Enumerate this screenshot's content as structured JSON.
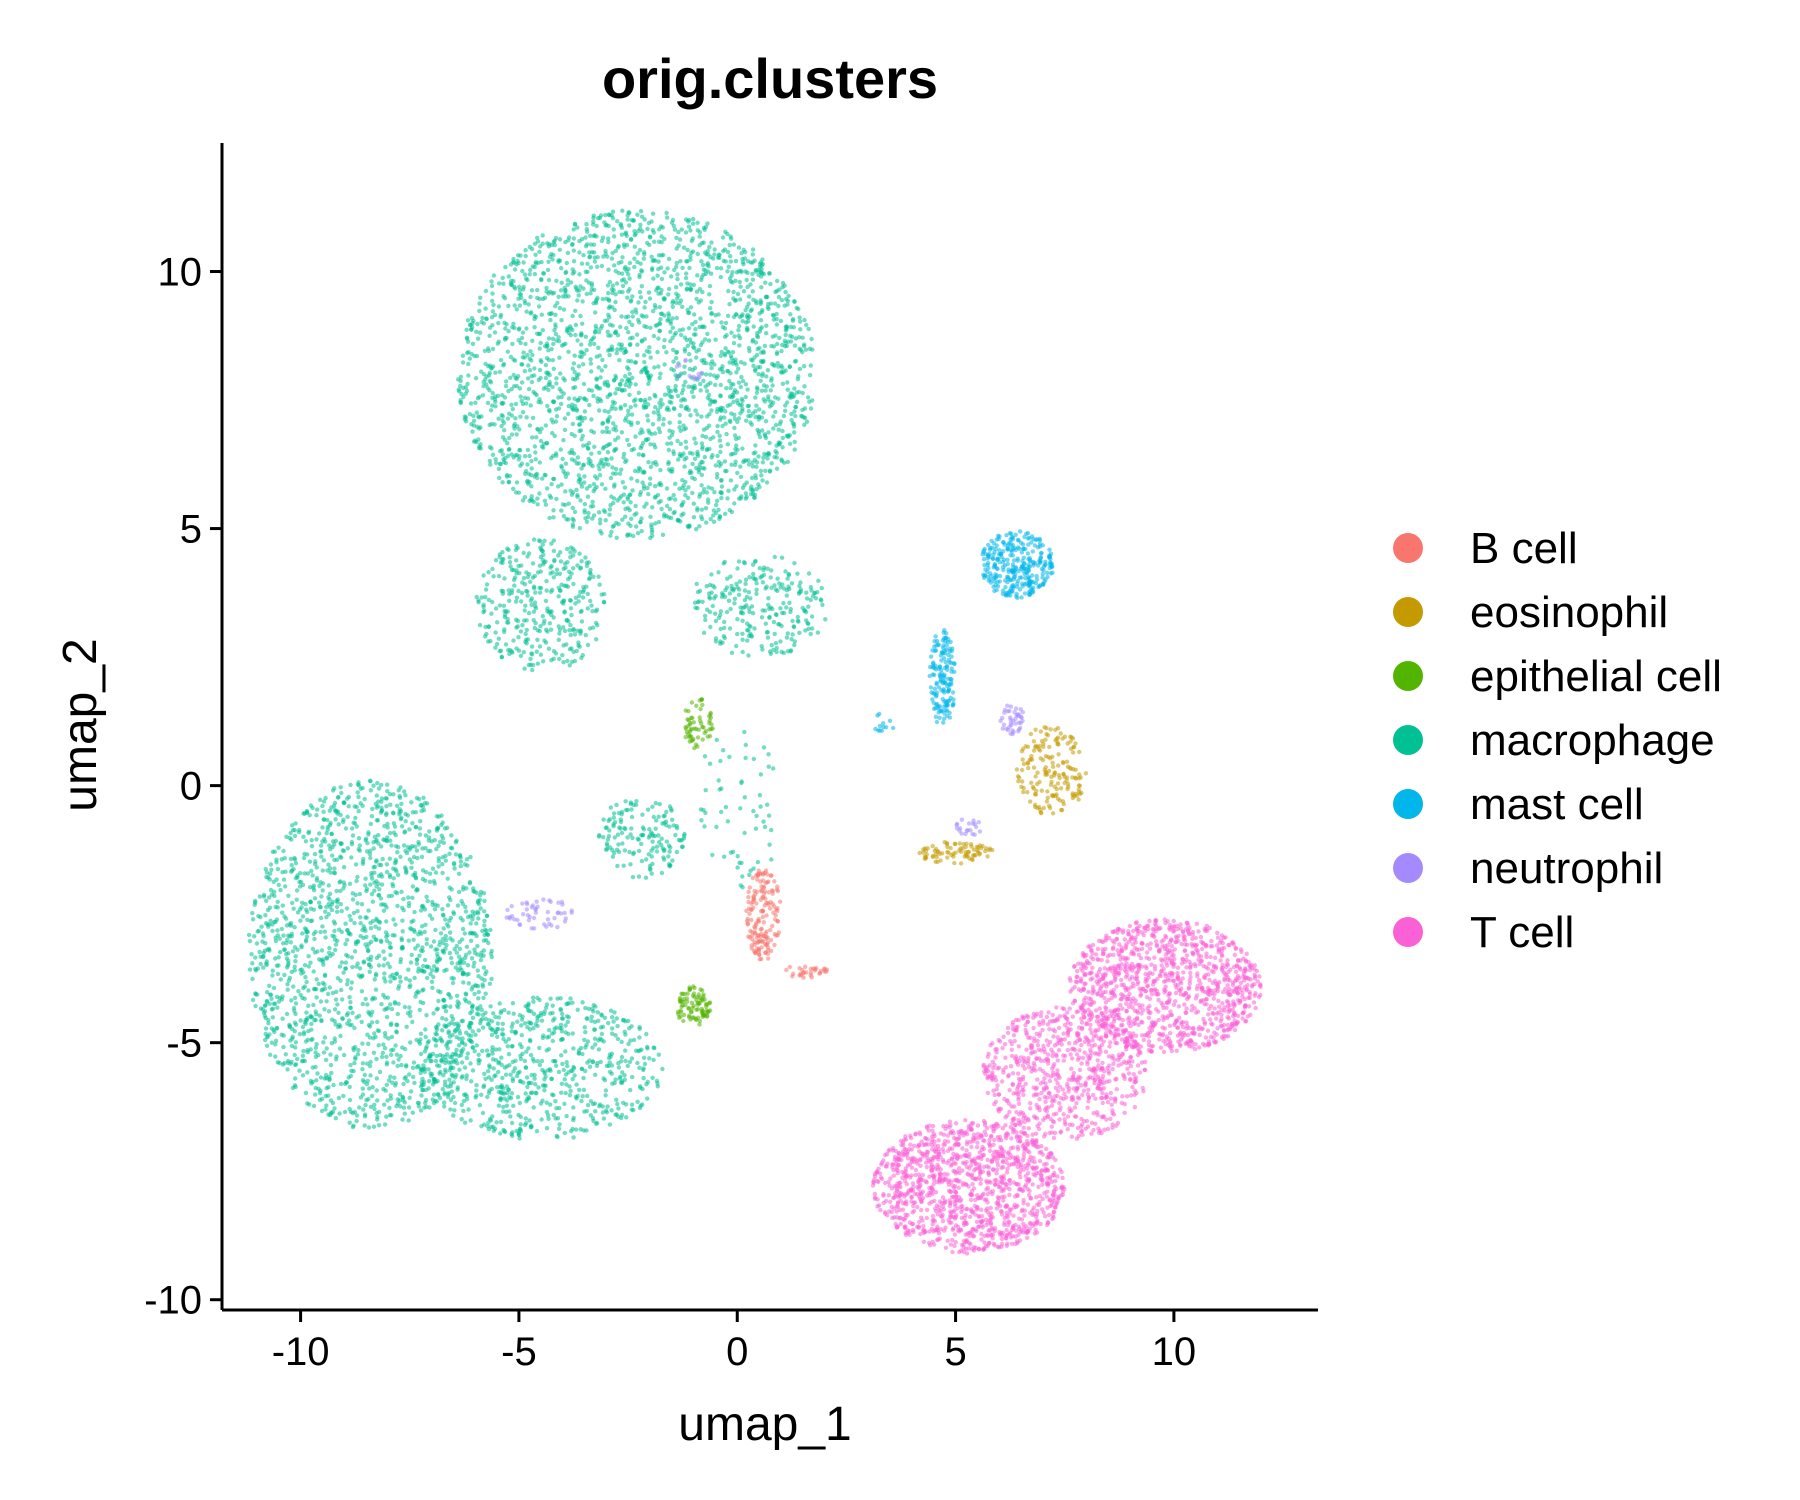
{
  "chart_data": {
    "type": "scatter",
    "title": "orig.clusters",
    "xlabel": "umap_1",
    "ylabel": "umap_2",
    "xlim": [
      -11.8,
      13.3
    ],
    "ylim": [
      -10.2,
      12.5
    ],
    "x_ticks": [
      -10,
      -5,
      0,
      5,
      10
    ],
    "x_tick_labels": [
      "-10",
      "-5",
      "0",
      "5",
      "10"
    ],
    "y_ticks": [
      -10,
      -5,
      0,
      5,
      10
    ],
    "y_tick_labels": [
      "-10",
      "-5",
      "0",
      "5",
      "10"
    ],
    "grid": false,
    "legend_position": "right",
    "series": [
      {
        "name": "B cell",
        "color": "#F8766D",
        "regions": [
          {
            "cx": 0.6,
            "cy": -2.5,
            "rx": 0.4,
            "ry": 0.9,
            "n": 160
          },
          {
            "cx": 1.6,
            "cy": -3.6,
            "rx": 0.5,
            "ry": 0.15,
            "n": 30
          }
        ]
      },
      {
        "name": "eosinophil",
        "color": "#C49A00",
        "regions": [
          {
            "cx": 7.2,
            "cy": 0.3,
            "rx": 0.8,
            "ry": 0.9,
            "n": 170
          },
          {
            "cx": 5.0,
            "cy": -1.3,
            "rx": 0.9,
            "ry": 0.22,
            "n": 80
          }
        ]
      },
      {
        "name": "epithelial cell",
        "color": "#53B400",
        "regions": [
          {
            "cx": -0.9,
            "cy": 1.2,
            "rx": 0.35,
            "ry": 0.5,
            "n": 60
          },
          {
            "cx": -1.0,
            "cy": -4.3,
            "rx": 0.4,
            "ry": 0.4,
            "n": 90
          }
        ]
      },
      {
        "name": "macrophage",
        "color": "#00C094",
        "regions": [
          {
            "cx": -2.3,
            "cy": 8.0,
            "rx": 4.1,
            "ry": 3.2,
            "n": 2400
          },
          {
            "cx": -4.5,
            "cy": 3.5,
            "rx": 1.5,
            "ry": 1.3,
            "n": 350
          },
          {
            "cx": 0.5,
            "cy": 3.5,
            "rx": 1.6,
            "ry": 1.0,
            "n": 250
          },
          {
            "cx": -8.4,
            "cy": -3.3,
            "rx": 2.8,
            "ry": 3.4,
            "n": 1700
          },
          {
            "cx": -4.5,
            "cy": -5.5,
            "rx": 2.8,
            "ry": 1.4,
            "n": 700
          },
          {
            "cx": -2.2,
            "cy": -1.0,
            "rx": 1.0,
            "ry": 0.8,
            "n": 150
          },
          {
            "cx": 0.0,
            "cy": -0.5,
            "rx": 1.0,
            "ry": 1.6,
            "n": 60
          }
        ]
      },
      {
        "name": "mast cell",
        "color": "#00B6EB",
        "regions": [
          {
            "cx": 6.4,
            "cy": 4.3,
            "rx": 0.85,
            "ry": 0.65,
            "n": 300
          },
          {
            "cx": 4.7,
            "cy": 2.1,
            "rx": 0.3,
            "ry": 0.95,
            "n": 150
          },
          {
            "cx": 3.3,
            "cy": 1.2,
            "rx": 0.3,
            "ry": 0.2,
            "n": 12
          }
        ]
      },
      {
        "name": "neutrophil",
        "color": "#A58AFF",
        "regions": [
          {
            "cx": 6.3,
            "cy": 1.3,
            "rx": 0.3,
            "ry": 0.3,
            "n": 40
          },
          {
            "cx": 5.3,
            "cy": -0.8,
            "rx": 0.3,
            "ry": 0.2,
            "n": 20
          },
          {
            "cx": -4.5,
            "cy": -2.5,
            "rx": 0.8,
            "ry": 0.3,
            "n": 50
          },
          {
            "cx": -1.2,
            "cy": 8.0,
            "rx": 0.4,
            "ry": 0.3,
            "n": 12
          }
        ]
      },
      {
        "name": "T cell",
        "color": "#FB61D7",
        "regions": [
          {
            "cx": 5.3,
            "cy": -7.8,
            "rx": 2.2,
            "ry": 1.3,
            "n": 1200
          },
          {
            "cx": 7.5,
            "cy": -5.6,
            "rx": 1.9,
            "ry": 1.3,
            "n": 700
          },
          {
            "cx": 9.8,
            "cy": -3.9,
            "rx": 2.2,
            "ry": 1.3,
            "n": 1100
          }
        ]
      }
    ]
  }
}
